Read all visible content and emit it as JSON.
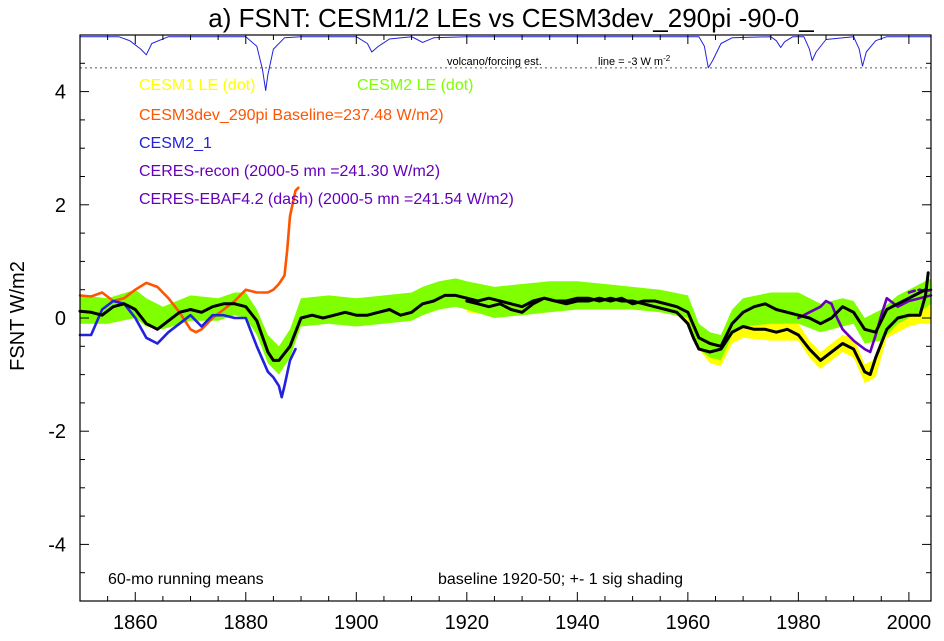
{
  "chart_data": {
    "type": "line",
    "title": "a) FSNT: CESM1/2 LEs vs CESM3dev_290pi -90-0_",
    "xlabel": "",
    "ylabel": "FSNT W/m2",
    "xlim": [
      1850,
      2004
    ],
    "ylim": [
      -5,
      5
    ],
    "x_ticks": [
      1860,
      1880,
      1900,
      1920,
      1940,
      1960,
      1980,
      2000
    ],
    "x_tick_labels": [
      "1860",
      "1880",
      "1900",
      "1920",
      "1940",
      "1960",
      "1980",
      "2000"
    ],
    "y_ticks": [
      -4,
      -2,
      0,
      2,
      4
    ],
    "y_tick_labels": [
      "-4",
      "-2",
      "0",
      "2",
      "4"
    ],
    "legend": [
      {
        "label": "CESM1 LE (dot)",
        "color": "#ffff00"
      },
      {
        "label": "CESM2 LE (dot)",
        "color": "#7fff00"
      },
      {
        "label": "CESM3dev_290pi Baseline=237.48 W/m2)",
        "color": "#ff5500"
      },
      {
        "label": "CESM2_1",
        "color": "#2222dd"
      },
      {
        "label": "CERES-recon (2000-5 mn =241.30 W/m2)",
        "color": "#6600bb"
      },
      {
        "label": "CERES-EBAF4.2 (dash) (2000-5 mn =241.54 W/m2)",
        "color": "#6600bb"
      }
    ],
    "annotations": {
      "volcano": "volcano/forcing est.",
      "volcano_line": "line = -3 W m",
      "volcano_line_sup": "-2",
      "bottom_left": "60-mo running means",
      "bottom_right": "baseline 1920-50; +- 1 sig shading"
    },
    "volcano_reference_level": 4.42,
    "series": [
      {
        "name": "CESM1 LE spread (+-1 sig)",
        "kind": "band",
        "color": "#ffff00",
        "x": [
          1920,
          1925,
          1930,
          1935,
          1940,
          1945,
          1950,
          1955,
          1958,
          1960,
          1962,
          1964,
          1966,
          1968,
          1970,
          1975,
          1980,
          1982,
          1984,
          1986,
          1988,
          1990,
          1992,
          1994,
          1996,
          1998,
          2000,
          2002,
          2004
        ],
        "lower": [
          0.1,
          0.05,
          0.1,
          0.15,
          0.25,
          0.22,
          0.2,
          0.12,
          0.05,
          -0.1,
          -0.55,
          -0.8,
          -0.85,
          -0.45,
          -0.35,
          -0.4,
          -0.4,
          -0.7,
          -0.9,
          -0.75,
          -0.6,
          -0.7,
          -1.15,
          -1.05,
          -0.35,
          -0.25,
          -0.15,
          -0.1,
          -0.1
        ],
        "upper": [
          0.3,
          0.25,
          0.35,
          0.45,
          0.55,
          0.52,
          0.48,
          0.4,
          0.33,
          0.2,
          -0.25,
          -0.45,
          -0.5,
          -0.12,
          -0.05,
          -0.1,
          -0.1,
          -0.4,
          -0.6,
          -0.45,
          -0.3,
          -0.35,
          -0.82,
          -0.72,
          0.0,
          0.1,
          0.2,
          0.25,
          0.25
        ]
      },
      {
        "name": "CESM2 LE spread (+-1 sig)",
        "kind": "band",
        "color": "#7fff00",
        "x": [
          1850,
          1855,
          1860,
          1862,
          1865,
          1870,
          1875,
          1878,
          1880,
          1882,
          1884,
          1886,
          1888,
          1890,
          1895,
          1900,
          1905,
          1910,
          1912,
          1915,
          1918,
          1920,
          1925,
          1930,
          1935,
          1940,
          1945,
          1950,
          1955,
          1960,
          1962,
          1964,
          1966,
          1968,
          1970,
          1975,
          1980,
          1984,
          1988,
          1990,
          1992,
          1995,
          1998,
          2000,
          2002,
          2004
        ],
        "lower": [
          -0.1,
          -0.1,
          0.0,
          -0.15,
          -0.2,
          -0.05,
          -0.05,
          0.05,
          0.0,
          -0.3,
          -0.8,
          -1.0,
          -0.7,
          -0.15,
          -0.1,
          -0.15,
          -0.1,
          -0.05,
          0.05,
          0.15,
          0.2,
          0.15,
          0.0,
          0.05,
          0.1,
          0.15,
          0.15,
          0.15,
          0.1,
          0.0,
          -0.55,
          -0.7,
          -0.75,
          -0.3,
          -0.15,
          -0.1,
          -0.1,
          -0.25,
          -0.15,
          -0.1,
          -0.45,
          -0.4,
          -0.1,
          0.0,
          0.1,
          0.25
        ],
        "upper": [
          0.4,
          0.35,
          0.5,
          0.35,
          0.2,
          0.4,
          0.35,
          0.45,
          0.45,
          0.15,
          -0.3,
          -0.5,
          -0.2,
          0.35,
          0.4,
          0.35,
          0.4,
          0.45,
          0.55,
          0.65,
          0.7,
          0.65,
          0.55,
          0.6,
          0.65,
          0.65,
          0.6,
          0.55,
          0.5,
          0.4,
          -0.1,
          -0.25,
          -0.3,
          0.15,
          0.35,
          0.45,
          0.45,
          0.25,
          0.35,
          0.3,
          0.0,
          0.15,
          0.4,
          0.5,
          0.6,
          0.7
        ]
      },
      {
        "name": "CESM3dev_290pi",
        "color": "#ff5500",
        "x": [
          1850,
          1852,
          1854,
          1856,
          1858,
          1860,
          1862,
          1864,
          1866,
          1868,
          1869,
          1870,
          1871,
          1872,
          1874,
          1876,
          1878,
          1880,
          1882,
          1884,
          1885,
          1886,
          1887,
          1887.5,
          1888,
          1889,
          1889.5
        ],
        "values": [
          0.4,
          0.38,
          0.45,
          0.3,
          0.35,
          0.5,
          0.62,
          0.55,
          0.35,
          0.1,
          -0.05,
          -0.2,
          -0.25,
          -0.2,
          0.0,
          0.15,
          0.3,
          0.5,
          0.45,
          0.45,
          0.5,
          0.6,
          0.75,
          1.2,
          1.8,
          2.25,
          2.3
        ]
      },
      {
        "name": "CESM2_1",
        "color": "#2222dd",
        "x": [
          1850,
          1852,
          1854,
          1856,
          1858,
          1860,
          1862,
          1864,
          1866,
          1868,
          1870,
          1872,
          1874,
          1876,
          1878,
          1880,
          1882,
          1884,
          1885,
          1886,
          1886.5,
          1887,
          1888,
          1889
        ],
        "values": [
          -0.3,
          -0.3,
          0.15,
          0.3,
          0.25,
          0.0,
          -0.35,
          -0.45,
          -0.25,
          -0.1,
          0.05,
          -0.15,
          0.05,
          0.05,
          0.0,
          0.0,
          -0.5,
          -0.95,
          -1.05,
          -1.2,
          -1.4,
          -1.2,
          -0.75,
          -0.55
        ]
      },
      {
        "name": "CERES-recon",
        "color": "#6600bb",
        "x": [
          1980,
          1982,
          1984,
          1985,
          1986,
          1987,
          1988,
          1990,
          1992,
          1993,
          1994,
          1995,
          1996,
          1998,
          2000,
          2002,
          2004
        ],
        "values": [
          0.0,
          0.1,
          0.2,
          0.3,
          0.25,
          0.0,
          -0.2,
          -0.4,
          -0.55,
          -0.6,
          -0.3,
          0.05,
          0.35,
          0.2,
          0.3,
          0.35,
          0.4
        ]
      },
      {
        "name": "CERES-EBAF4.2 (dash)",
        "color": "#6600bb",
        "dashed": true,
        "x": [
          2000,
          2001,
          2002,
          2003,
          2004
        ],
        "values": [
          0.45,
          0.48,
          0.5,
          0.47,
          0.5
        ]
      },
      {
        "name": "Ensemble mean (black)",
        "color": "#000000",
        "x": [
          1850,
          1852,
          1854,
          1856,
          1858,
          1860,
          1862,
          1864,
          1866,
          1868,
          1870,
          1872,
          1874,
          1876,
          1878,
          1880,
          1882,
          1884,
          1885,
          1886,
          1888,
          1890,
          1892,
          1894,
          1896,
          1898,
          1900,
          1902,
          1904,
          1906,
          1908,
          1910,
          1912,
          1914,
          1916,
          1918,
          1920
        ],
        "values": [
          0.12,
          0.1,
          0.05,
          0.2,
          0.25,
          0.15,
          -0.1,
          -0.2,
          -0.05,
          0.1,
          0.15,
          0.1,
          0.2,
          0.25,
          0.25,
          0.2,
          -0.05,
          -0.6,
          -0.75,
          -0.75,
          -0.5,
          0.0,
          0.05,
          0.0,
          0.05,
          0.1,
          0.05,
          0.05,
          0.1,
          0.15,
          0.05,
          0.1,
          0.25,
          0.3,
          0.4,
          0.4,
          0.35
        ]
      },
      {
        "name": "Ensemble mean 2 (black)",
        "color": "#000000",
        "x": [
          1920,
          1922,
          1924,
          1926,
          1928,
          1930,
          1932,
          1934,
          1936,
          1938,
          1940,
          1942,
          1944,
          1946,
          1948,
          1950,
          1952,
          1954,
          1956,
          1958,
          1960,
          1961,
          1962,
          1964,
          1966,
          1968,
          1970,
          1972,
          1974,
          1976,
          1978,
          1980,
          1982,
          1984,
          1986,
          1988,
          1990,
          1992,
          1993,
          1994,
          1996,
          1998,
          2000,
          2002,
          2003,
          2003.5
        ],
        "values": [
          0.3,
          0.25,
          0.2,
          0.25,
          0.15,
          0.1,
          0.25,
          0.35,
          0.3,
          0.3,
          0.35,
          0.35,
          0.3,
          0.35,
          0.3,
          0.3,
          0.25,
          0.2,
          0.15,
          0.1,
          -0.1,
          -0.35,
          -0.55,
          -0.6,
          -0.55,
          -0.25,
          -0.15,
          -0.2,
          -0.2,
          -0.25,
          -0.2,
          -0.3,
          -0.55,
          -0.75,
          -0.6,
          -0.45,
          -0.55,
          -0.95,
          -1.0,
          -0.7,
          -0.2,
          0.0,
          0.05,
          0.05,
          0.4,
          0.8
        ]
      },
      {
        "name": "Ensemble mean 3 (black)",
        "color": "#000000",
        "x": [
          1920,
          1922,
          1924,
          1926,
          1928,
          1930,
          1932,
          1934,
          1936,
          1938,
          1940,
          1942,
          1944,
          1946,
          1948,
          1950,
          1952,
          1954,
          1956,
          1958,
          1960,
          1962,
          1964,
          1966,
          1968,
          1970,
          1972,
          1974,
          1976,
          1978,
          1980,
          1982,
          1984,
          1986,
          1988,
          1990,
          1992,
          1994,
          1996,
          1998,
          2000,
          2002,
          2003
        ],
        "values": [
          0.35,
          0.3,
          0.35,
          0.3,
          0.25,
          0.2,
          0.3,
          0.35,
          0.3,
          0.25,
          0.3,
          0.3,
          0.35,
          0.3,
          0.35,
          0.25,
          0.3,
          0.3,
          0.25,
          0.2,
          0.1,
          -0.35,
          -0.45,
          -0.5,
          -0.1,
          0.1,
          0.2,
          0.25,
          0.15,
          0.1,
          0.05,
          0.0,
          -0.1,
          0.0,
          0.2,
          0.1,
          -0.2,
          -0.25,
          0.15,
          0.25,
          0.35,
          0.45,
          0.5
        ]
      },
      {
        "name": "Volcano/forcing est.",
        "color": "#2222dd",
        "thin": true,
        "x": [
          1850,
          1857,
          1859,
          1861,
          1862,
          1863,
          1866,
          1880,
          1882,
          1883,
          1883.6,
          1884,
          1885,
          1887,
          1890,
          1900,
          1902,
          1902.8,
          1904,
          1906,
          1910,
          1911,
          1912,
          1914,
          1920,
          1962,
          1963,
          1963.7,
          1964.5,
          1966,
          1968,
          1975,
          1976,
          1976.8,
          1977.5,
          1979,
          1981,
          1982,
          1982.5,
          1983.2,
          1985,
          1990,
          1991,
          1991.6,
          1992.3,
          1994,
          1996,
          2004
        ],
        "values": [
          4.97,
          4.97,
          4.9,
          4.75,
          4.65,
          4.85,
          4.97,
          4.97,
          4.8,
          4.4,
          4.02,
          4.3,
          4.75,
          4.95,
          4.97,
          4.97,
          4.85,
          4.7,
          4.8,
          4.93,
          4.97,
          4.92,
          4.87,
          4.95,
          4.97,
          4.97,
          4.8,
          4.42,
          4.55,
          4.85,
          4.95,
          4.97,
          4.9,
          4.78,
          4.88,
          4.97,
          4.97,
          4.75,
          4.55,
          4.7,
          4.92,
          4.97,
          4.75,
          4.45,
          4.7,
          4.9,
          4.97,
          4.97
        ]
      }
    ]
  }
}
